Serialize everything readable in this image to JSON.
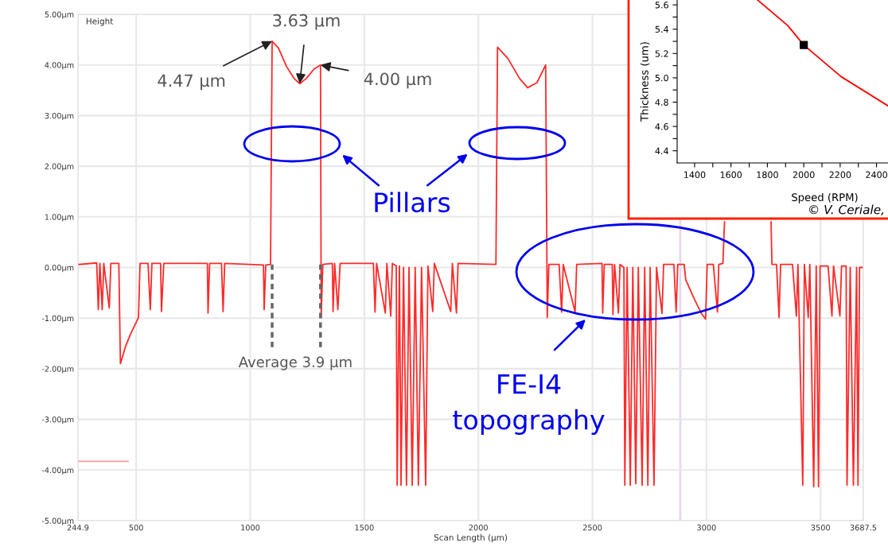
{
  "chart_data": [
    {
      "type": "line",
      "xlabel": "Scan Length (µm)",
      "ylabel": "Height",
      "grid": true,
      "xlim": [
        244.9,
        3687.5
      ],
      "xticks": [
        244.9,
        500,
        1000,
        1500,
        2000,
        2500,
        3000,
        3500,
        3687.5
      ],
      "ylim": [
        -5,
        5
      ],
      "yticks": [
        {
          "value": 5,
          "label": "5.00µm"
        },
        {
          "value": 4,
          "label": "4.00µm"
        },
        {
          "value": 3,
          "label": "3.00µm"
        },
        {
          "value": 2,
          "label": "2.00µm"
        },
        {
          "value": 1,
          "label": "1.00µm"
        },
        {
          "value": 0,
          "label": "0.00µm"
        },
        {
          "value": -1,
          "label": "-1.00µm"
        },
        {
          "value": -2,
          "label": "-2.00µm"
        },
        {
          "value": -3,
          "label": "-3.00µm"
        },
        {
          "value": -4,
          "label": "-4.00µm"
        },
        {
          "value": -5,
          "label": "-5.00µm"
        }
      ],
      "ref_lines": [
        {
          "axis": "x",
          "value": 2885,
          "label": null,
          "color": "#e6d8ea"
        }
      ],
      "series": [
        {
          "color": "#ff9a9a",
          "x": [
            250,
            465
          ],
          "values": [
            -3.83,
            -3.83
          ]
        },
        {
          "color": "#ff2a2a",
          "x": [
            250,
            327,
            334,
            341,
            351,
            358,
            382,
            389,
            424,
            431,
            455,
            476,
            510,
            517,
            552,
            562,
            569,
            607,
            611,
            621,
            812,
            815,
            822,
            874,
            881,
            888,
            1058,
            1061,
            1068,
            1089,
            1096,
            1124,
            1159,
            1193,
            1217,
            1245,
            1280,
            1308,
            1311,
            1318,
            1360,
            1363,
            1370,
            1384,
            1394,
            1540,
            1547,
            1554,
            1592,
            1599,
            1616,
            1623,
            1640,
            1644,
            1654,
            1661,
            1672,
            1685,
            1696,
            1710,
            1723,
            1737,
            1751,
            1769,
            1779,
            1800,
            1807,
            1879,
            1886,
            1904,
            1911,
            2077,
            2084,
            2129,
            2181,
            2216,
            2257,
            2295,
            2302,
            2309,
            2354,
            2365,
            2372,
            2424,
            2431,
            2542,
            2545,
            2552,
            2587,
            2590,
            2597,
            2614,
            2621,
            2638,
            2642,
            2652,
            2666,
            2677,
            2690,
            2701,
            2718,
            2729,
            2743,
            2753,
            2770,
            2781,
            2805,
            2812,
            2857,
            2867,
            2874,
            2902,
            2909,
            2944,
            2978,
            2996,
            3003,
            3030,
            3048,
            3054,
            3072,
            3079,
            3180,
            3283,
            3287,
            3307,
            3318,
            3325,
            3377,
            3394,
            3401,
            3422,
            3429,
            3446,
            3453,
            3470,
            3481,
            3491,
            3498,
            3533,
            3550,
            3557,
            3585,
            3592,
            3612,
            3616,
            3630,
            3644,
            3658,
            3664,
            3671,
            3682
          ],
          "values": [
            0.06,
            0.09,
            -0.83,
            0.08,
            -0.83,
            0.08,
            -0.8,
            0.08,
            0.08,
            -1.9,
            -1.54,
            -1.31,
            -0.99,
            0.08,
            0.08,
            -0.83,
            0.08,
            0.08,
            -0.87,
            0.08,
            0.08,
            -0.9,
            0.08,
            0.08,
            -0.87,
            0.08,
            0.05,
            -0.83,
            0.05,
            0.06,
            4.47,
            4.33,
            3.97,
            3.73,
            3.63,
            3.73,
            3.92,
            4.0,
            -0.99,
            0.06,
            0.08,
            -0.87,
            0.08,
            -0.83,
            0.08,
            0.08,
            -0.88,
            0.08,
            -0.9,
            0.08,
            -0.96,
            0.08,
            0.03,
            -4.3,
            0.03,
            -4.3,
            0,
            -4.3,
            0,
            -4.3,
            0,
            -4.3,
            0,
            -4.3,
            0.03,
            -0.87,
            0.08,
            -0.87,
            0.08,
            -0.9,
            0.08,
            0.06,
            4.35,
            4.13,
            3.73,
            3.55,
            3.65,
            4.0,
            -0.99,
            0.06,
            0.06,
            -0.88,
            0.06,
            -0.88,
            0.06,
            0.08,
            -0.9,
            0.06,
            0.06,
            -0.93,
            0.06,
            -0.9,
            0.06,
            0,
            -4.3,
            0,
            -4.3,
            0,
            -4.27,
            0,
            -4.3,
            0,
            -4.3,
            0,
            -4.3,
            0,
            -0.91,
            0.06,
            0.06,
            -0.88,
            0.06,
            0.06,
            -0.24,
            -0.6,
            -0.91,
            -1.02,
            0.06,
            0.06,
            -0.88,
            0.06,
            0.08,
            0.9,
            null,
            0.9,
            0.06,
            0.06,
            -0.99,
            0.06,
            0.06,
            -0.96,
            0.06,
            -4.3,
            0.06,
            -0.99,
            0.06,
            -4.33,
            0.03,
            -4.33,
            0.03,
            0.03,
            -0.96,
            0.03,
            -0.96,
            0.03,
            0.03,
            -4.3,
            0,
            -4.3,
            0,
            -4.3,
            0,
            0
          ]
        }
      ],
      "annotations": [
        {
          "text": "4.47 µm",
          "x": 1096,
          "y": 4.47
        },
        {
          "text": "3.63 µm",
          "x": 1217,
          "y": 3.63
        },
        {
          "text": "4.00 µm",
          "x": 1308,
          "y": 4.0
        },
        {
          "text": "Average 3.9 µm",
          "x": 1096,
          "y": 0.06
        },
        "Pillars",
        "FE-I4\ntopography"
      ]
    },
    {
      "type": "scatter",
      "xlabel": "Speed (RPM)",
      "ylabel": "Thickness (um)",
      "xlim": [
        1304,
        2463
      ],
      "xticks": [
        1400,
        {
          "value": 1500,
          "label": null
        },
        1600,
        {
          "value": 1700,
          "label": null
        },
        1800,
        {
          "value": 1900,
          "label": null
        },
        2000,
        {
          "value": 2100,
          "label": null
        },
        2200,
        {
          "value": 2300,
          "label": null
        },
        2400
      ],
      "ylim": [
        4.3,
        5.64
      ],
      "yticks": [
        4.4,
        {
          "value": 4.5,
          "label": null
        },
        4.6,
        {
          "value": 4.7,
          "label": null
        },
        4.8,
        {
          "value": 4.9,
          "label": null
        },
        {
          "value": 5.0,
          "label": "5.0"
        },
        {
          "value": 5.1,
          "label": null
        },
        5.2,
        {
          "value": 5.3,
          "label": null
        },
        5.4,
        {
          "value": 5.5,
          "label": null
        },
        5.6
      ],
      "series": [
        {
          "type": "line",
          "color": "#ff0000",
          "x": [
            1746,
            1912,
            2000,
            2205,
            2463
          ],
          "values": [
            5.64,
            5.43,
            5.27,
            5.01,
            4.77
          ]
        },
        {
          "type": "scatter",
          "marker": "square",
          "color": "#000000",
          "x": [
            2000
          ],
          "values": [
            5.27
          ]
        }
      ],
      "annotations": [
        "© V. Ceriale,"
      ]
    }
  ]
}
